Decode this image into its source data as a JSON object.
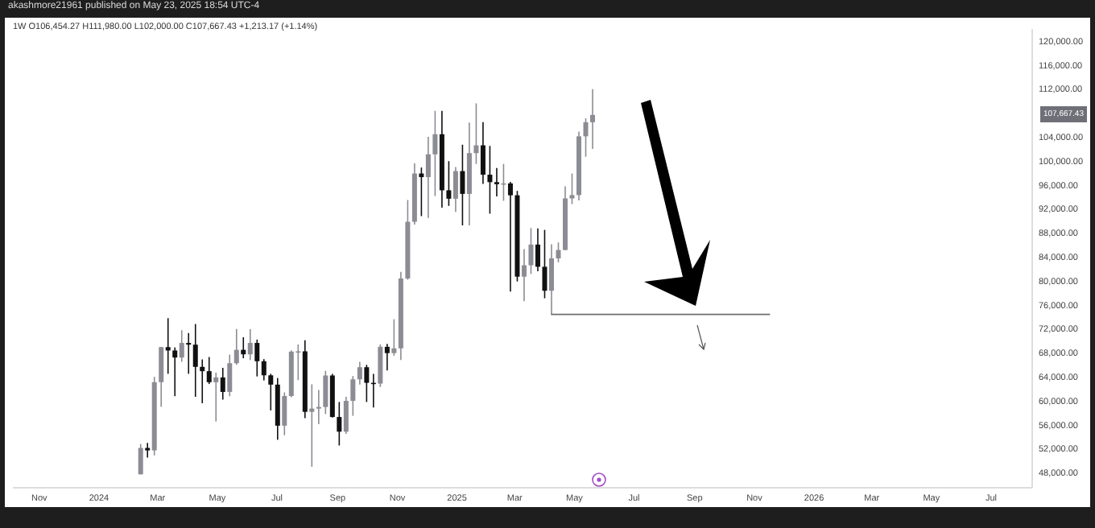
{
  "chart_data": {
    "type": "candlestick",
    "annotations": [
      "akashmore21961 published on May 23, 2025 18:54 UTC-4",
      "1W  O106,454.27 H111,980.00 L102,000.00 C107,667.43 +1,213.17 (+1.14%)",
      "107,667.43"
    ],
    "x": [
      "2024-02-12",
      "2024-02-19",
      "2024-02-26",
      "2024-03-04",
      "2024-03-11",
      "2024-03-18",
      "2024-03-25",
      "2024-04-01",
      "2024-04-08",
      "2024-04-15",
      "2024-04-22",
      "2024-04-29",
      "2024-05-06",
      "2024-05-13",
      "2024-05-20",
      "2024-05-27",
      "2024-06-03",
      "2024-06-10",
      "2024-06-17",
      "2024-06-24",
      "2024-07-01",
      "2024-07-08",
      "2024-07-15",
      "2024-07-22",
      "2024-07-29",
      "2024-08-05",
      "2024-08-12",
      "2024-08-19",
      "2024-08-26",
      "2024-09-02",
      "2024-09-09",
      "2024-09-16",
      "2024-09-23",
      "2024-09-30",
      "2024-10-07",
      "2024-10-14",
      "2024-10-21",
      "2024-10-28",
      "2024-11-04",
      "2024-11-11",
      "2024-11-18",
      "2024-11-25",
      "2024-12-02",
      "2024-12-09",
      "2024-12-16",
      "2024-12-23",
      "2024-12-30",
      "2025-01-06",
      "2025-01-13",
      "2025-01-20",
      "2025-01-27",
      "2025-02-03",
      "2025-02-10",
      "2025-02-17",
      "2025-02-24",
      "2025-03-03",
      "2025-03-10",
      "2025-03-17",
      "2025-03-24",
      "2025-03-31",
      "2025-04-07",
      "2025-04-14",
      "2025-04-21",
      "2025-04-28",
      "2025-05-05",
      "2025-05-12",
      "2025-05-19"
    ],
    "ohlc": [
      [
        47750,
        52800,
        47700,
        52140
      ],
      [
        52140,
        52980,
        50520,
        51730
      ],
      [
        51730,
        64000,
        50900,
        63110
      ],
      [
        63110,
        69000,
        59000,
        68950
      ],
      [
        68950,
        73780,
        64500,
        68390
      ],
      [
        68390,
        68900,
        60770,
        67210
      ],
      [
        67210,
        71770,
        66500,
        69650
      ],
      [
        69650,
        71300,
        64500,
        69360
      ],
      [
        69360,
        72800,
        60660,
        65660
      ],
      [
        65660,
        66900,
        59600,
        64940
      ],
      [
        64940,
        67300,
        62800,
        63100
      ],
      [
        63100,
        64700,
        56550,
        63890
      ],
      [
        63890,
        65500,
        60200,
        61480
      ],
      [
        61480,
        67700,
        60750,
        66270
      ],
      [
        66270,
        71980,
        66000,
        68500
      ],
      [
        68500,
        70600,
        67100,
        67750
      ],
      [
        67750,
        71950,
        66800,
        69650
      ],
      [
        69650,
        70200,
        64060,
        66600
      ],
      [
        66600,
        66950,
        63400,
        64250
      ],
      [
        64250,
        64500,
        58400,
        62700
      ],
      [
        62700,
        63800,
        53500,
        55850
      ],
      [
        55850,
        61400,
        54260,
        60800
      ],
      [
        60800,
        68400,
        60600,
        68200
      ],
      [
        68200,
        69400,
        63450,
        68250
      ],
      [
        68250,
        70080,
        57120,
        58160
      ],
      [
        58160,
        62750,
        49000,
        58700
      ],
      [
        58700,
        61800,
        56100,
        58970
      ],
      [
        58970,
        65000,
        57800,
        64220
      ],
      [
        64220,
        64480,
        57200,
        57300
      ],
      [
        57300,
        59800,
        52550,
        54850
      ],
      [
        54850,
        60670,
        54500,
        59990
      ],
      [
        59990,
        64130,
        57500,
        63580
      ],
      [
        63580,
        66500,
        62700,
        65600
      ],
      [
        65600,
        66000,
        59800,
        63000
      ],
      [
        63000,
        64480,
        58900,
        62870
      ],
      [
        62870,
        69400,
        62300,
        69000
      ],
      [
        69000,
        69500,
        65050,
        67950
      ],
      [
        67950,
        73600,
        67500,
        68750
      ],
      [
        68750,
        81500,
        66800,
        80400
      ],
      [
        80400,
        93480,
        80200,
        89850
      ],
      [
        89850,
        99590,
        89400,
        97900
      ],
      [
        97900,
        98900,
        90800,
        97300
      ],
      [
        97300,
        104000,
        90500,
        101100
      ],
      [
        101100,
        108350,
        94150,
        104450
      ],
      [
        104450,
        108350,
        92200,
        95100
      ],
      [
        95100,
        99960,
        92500,
        93700
      ],
      [
        93700,
        98980,
        91500,
        98300
      ],
      [
        98300,
        102700,
        89250,
        94500
      ],
      [
        94500,
        106400,
        89250,
        101300
      ],
      [
        101300,
        109590,
        99500,
        102600
      ],
      [
        102600,
        106450,
        96150,
        97700
      ],
      [
        97700,
        102500,
        91200,
        96460
      ],
      [
        96460,
        98800,
        94100,
        96120
      ],
      [
        96120,
        99500,
        93350,
        96250
      ],
      [
        96250,
        96500,
        78200,
        94270
      ],
      [
        94270,
        95000,
        79900,
        80700
      ],
      [
        80700,
        85300,
        76600,
        82600
      ],
      [
        82600,
        88800,
        81150,
        86050
      ],
      [
        86050,
        88750,
        81600,
        82350
      ],
      [
        82350,
        88500,
        77100,
        78350
      ],
      [
        78350,
        86100,
        74500,
        83750
      ],
      [
        83750,
        86400,
        83100,
        85150
      ],
      [
        85150,
        95750,
        85100,
        93750
      ],
      [
        93750,
        97900,
        92800,
        94300
      ],
      [
        94300,
        104900,
        93400,
        104100
      ],
      [
        104100,
        107100,
        100700,
        106450
      ],
      [
        106454.27,
        111980,
        102000,
        107667.43
      ]
    ],
    "colors": [
      "#8c8c94",
      "#111111",
      "#8c8c94",
      "#8c8c94",
      "#111111",
      "#111111",
      "#8c8c94",
      "#111111",
      "#111111",
      "#111111",
      "#111111",
      "#8c8c94",
      "#111111",
      "#8c8c94",
      "#8c8c94",
      "#111111",
      "#8c8c94",
      "#111111",
      "#111111",
      "#111111",
      "#111111",
      "#8c8c94",
      "#8c8c94",
      "#8c8c94",
      "#111111",
      "#8c8c94",
      "#8c8c94",
      "#8c8c94",
      "#111111",
      "#111111",
      "#8c8c94",
      "#8c8c94",
      "#8c8c94",
      "#111111",
      "#111111",
      "#8c8c94",
      "#111111",
      "#8c8c94",
      "#8c8c94",
      "#8c8c94",
      "#8c8c94",
      "#111111",
      "#8c8c94",
      "#8c8c94",
      "#111111",
      "#111111",
      "#8c8c94",
      "#111111",
      "#8c8c94",
      "#8c8c94",
      "#111111",
      "#111111",
      "#111111",
      "#8c8c94",
      "#111111",
      "#111111",
      "#8c8c94",
      "#8c8c94",
      "#111111",
      "#111111",
      "#8c8c94",
      "#8c8c94",
      "#8c8c94",
      "#8c8c94",
      "#8c8c94",
      "#8c8c94",
      "#8c8c94"
    ],
    "series": [
      {
        "type": "line",
        "x": [
          "2025-04-07",
          "2025-11-17"
        ],
        "values": [
          74400,
          74400
        ],
        "color": "#6e6e6e",
        "marker": "none",
        "line_style": "solid"
      }
    ],
    "xlim": [
      "2023-10-05",
      "2026-08-12"
    ],
    "xticks": [
      {
        "value": "2023-11-01",
        "label": "Nov"
      },
      {
        "value": "2024-01-01",
        "label": "2024"
      },
      {
        "value": "2024-03-01",
        "label": "Mar"
      },
      {
        "value": "2024-05-01",
        "label": "May"
      },
      {
        "value": "2024-07-01",
        "label": "Jul"
      },
      {
        "value": "2024-09-01",
        "label": "Sep"
      },
      {
        "value": "2024-11-01",
        "label": "Nov"
      },
      {
        "value": "2025-01-01",
        "label": "2025"
      },
      {
        "value": "2025-03-01",
        "label": "Mar"
      },
      {
        "value": "2025-05-01",
        "label": "May"
      },
      {
        "value": "2025-07-01",
        "label": "Jul"
      },
      {
        "value": "2025-09-01",
        "label": "Sep"
      },
      {
        "value": "2025-11-01",
        "label": "Nov"
      },
      {
        "value": "2026-01-01",
        "label": "2026"
      },
      {
        "value": "2026-03-01",
        "label": "Mar"
      },
      {
        "value": "2026-05-01",
        "label": "May"
      },
      {
        "value": "2026-07-01",
        "label": "Jul"
      }
    ],
    "ylim": [
      45500,
      122000
    ],
    "yticks": [
      {
        "value": 48000,
        "label": "48,000.00"
      },
      {
        "value": 52000,
        "label": "52,000.00"
      },
      {
        "value": 56000,
        "label": "56,000.00"
      },
      {
        "value": 60000,
        "label": "60,000.00"
      },
      {
        "value": 64000,
        "label": "64,000.00"
      },
      {
        "value": 68000,
        "label": "68,000.00"
      },
      {
        "value": 72000,
        "label": "72,000.00"
      },
      {
        "value": 76000,
        "label": "76,000.00"
      },
      {
        "value": 80000,
        "label": "80,000.00"
      },
      {
        "value": 84000,
        "label": "84,000.00"
      },
      {
        "value": 88000,
        "label": "88,000.00"
      },
      {
        "value": 92000,
        "label": "92,000.00"
      },
      {
        "value": 96000,
        "label": "96,000.00"
      },
      {
        "value": 100000,
        "label": "100,000.00"
      },
      {
        "value": 104000,
        "label": "104,000.00"
      },
      {
        "value": 112000,
        "label": "112,000.00"
      },
      {
        "value": 116000,
        "label": "116,000.00"
      },
      {
        "value": 120000,
        "label": "120,000.00"
      }
    ]
  }
}
